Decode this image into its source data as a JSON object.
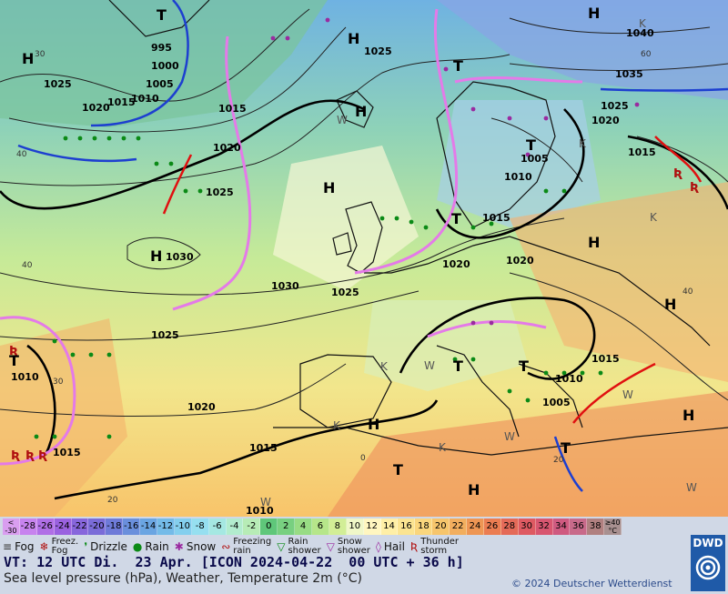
{
  "map": {
    "pressure_labels": [
      "995",
      "1000",
      "1005",
      "1010",
      "1015",
      "1020",
      "1025",
      "1030",
      "1035",
      "1040"
    ],
    "high_symbol": "H",
    "low_symbol": "T",
    "warm_marker": "W",
    "cold_marker": "K",
    "temp_labels": [
      "40",
      "30",
      "20",
      "0",
      "60"
    ]
  },
  "scale": {
    "first_label": "<\n-30",
    "values": [
      "-30",
      "-28",
      "-26",
      "-24",
      "-22",
      "-20",
      "-18",
      "-16",
      "-14",
      "-12",
      "-10",
      "-8",
      "-6",
      "-4",
      "-2",
      "0",
      "2",
      "4",
      "6",
      "8",
      "10",
      "12",
      "14",
      "16",
      "18",
      "20",
      "22",
      "24",
      "26",
      "28",
      "30",
      "32",
      "34",
      "36",
      "38"
    ],
    "last_label": "≥40\n°C",
    "colors": [
      "#d99ef0",
      "#c783ee",
      "#b06fe6",
      "#9a62e0",
      "#8766dc",
      "#7a6cd8",
      "#6e7ad8",
      "#6a8fdc",
      "#6aa5e2",
      "#74bbe8",
      "#84cfee",
      "#96dff0",
      "#a5e8e2",
      "#b2ecce",
      "#b7ecb6",
      "#5fc77a",
      "#78d080",
      "#98dc84",
      "#b6e68a",
      "#d2ee96",
      "#f0f7c8",
      "#fff6c0",
      "#ffefa6",
      "#fbe491",
      "#fad67d",
      "#f6c56c",
      "#f2ae5e",
      "#ee9654",
      "#eb7d52",
      "#e46a58",
      "#de5a62",
      "#d85670",
      "#cf5a80",
      "#c86a8a",
      "#b08080",
      "#a89090"
    ]
  },
  "legend": [
    {
      "icon": "fog-icon",
      "glyph": "≡",
      "label": "Fog",
      "color": "#333333"
    },
    {
      "icon": "freezing-fog-icon",
      "glyph": "❄",
      "label": "Freez.\nFog",
      "color": "#b01010"
    },
    {
      "icon": "drizzle-icon",
      "glyph": "❜",
      "label": "Drizzle",
      "color": "#0b8a16"
    },
    {
      "icon": "rain-icon",
      "glyph": "●",
      "label": "Rain",
      "color": "#0b8a16"
    },
    {
      "icon": "snow-icon",
      "glyph": "✱",
      "label": "Snow",
      "color": "#9a2aa0"
    },
    {
      "icon": "freezing-rain-icon",
      "glyph": "∾",
      "label": "Freezing\nrain",
      "color": "#b01010"
    },
    {
      "icon": "rain-shower-icon",
      "glyph": "▽",
      "label": "Rain\nshower",
      "color": "#0b8a16"
    },
    {
      "icon": "snow-shower-icon",
      "glyph": "▽",
      "label": "Snow\nshower",
      "color": "#9a2aa0"
    },
    {
      "icon": "hail-icon",
      "glyph": "◊",
      "label": "Hail",
      "color": "#9a2aa0"
    },
    {
      "icon": "thunderstorm-icon",
      "glyph": "Ʀ",
      "label": "Thunder\nstorm",
      "color": "#b01010"
    }
  ],
  "valid_time": "VT: 12 UTC Di.  23 Apr. [ICON 2024-04-22  00 UTC + 36 h]",
  "description": "Sea level pressure (hPa), Weather, Temperature 2m (°C)",
  "copyright": "© 2024 Deutscher Wetterdienst",
  "logo": "DWD"
}
